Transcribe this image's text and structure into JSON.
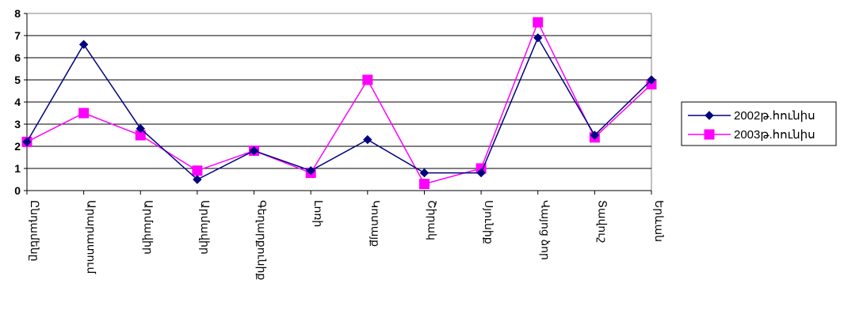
{
  "chart_data": {
    "type": "line",
    "categories": [
      "Ընդամենը",
      "Արարատում",
      "Արմավիր",
      "Արմավիր",
      "Գեղարքունիք",
      "Լոռի",
      "Կոտայք",
      "Շիրակ",
      "Սյունիք",
      "Վայոց ձոր",
      "Տավուշ",
      "Երևան"
    ],
    "series": [
      {
        "name": "2002թ.հունիս",
        "values": [
          2.2,
          6.6,
          2.8,
          0.5,
          1.8,
          0.9,
          2.3,
          0.8,
          0.8,
          6.9,
          2.5,
          5.0
        ],
        "color": "#000080",
        "marker": "diamond"
      },
      {
        "name": "2003թ.հունիս",
        "values": [
          2.2,
          3.5,
          2.5,
          0.9,
          1.8,
          0.8,
          5.0,
          0.3,
          1.0,
          7.6,
          2.4,
          4.8
        ],
        "color": "#FF00FF",
        "marker": "square"
      }
    ],
    "ylim": [
      0,
      8
    ],
    "yticks": [
      "0",
      "1",
      "2",
      "3",
      "4",
      "5",
      "6",
      "7",
      "8"
    ],
    "grid": true,
    "legend_position": "right",
    "title": "",
    "xlabel": "",
    "ylabel": ""
  }
}
